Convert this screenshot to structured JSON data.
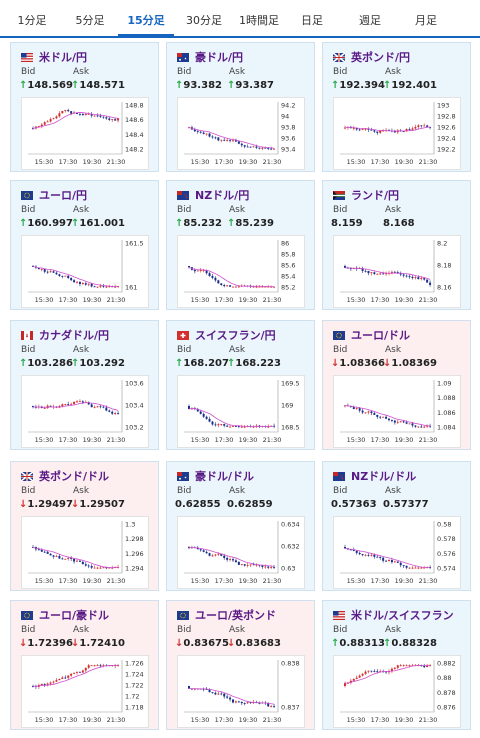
{
  "tabs": [
    {
      "label": "1分足",
      "active": false
    },
    {
      "label": "5分足",
      "active": false
    },
    {
      "label": "15分足",
      "active": true
    },
    {
      "label": "30分足",
      "active": false
    },
    {
      "label": "1時間足",
      "active": false
    },
    {
      "label": "日足",
      "active": false
    },
    {
      "label": "週足",
      "active": false
    },
    {
      "label": "月足",
      "active": false
    }
  ],
  "labels": {
    "bid": "Bid",
    "ask": "Ask"
  },
  "colors": {
    "up": "#2aa84a",
    "down": "#d32f2f",
    "ma": "#d04ed0",
    "bg_blue": "#eaf5fc",
    "bg_pink": "#fdeff0"
  },
  "cards": [
    {
      "title": "米ドル/円",
      "flag": "us",
      "bg": "blue",
      "dir": "up",
      "bid": "148.569",
      "ask": "148.571",
      "yticks": [
        "148.8",
        "148.6",
        "148.4",
        "148.2"
      ],
      "xticks": [
        "15:30",
        "17:30",
        "19:30",
        "21:30"
      ],
      "trend": "mixup"
    },
    {
      "title": "豪ドル/円",
      "flag": "au",
      "bg": "blue",
      "dir": "up",
      "bid": "93.382",
      "ask": "93.387",
      "yticks": [
        "94.2",
        "94",
        "93.8",
        "93.6",
        "93.4"
      ],
      "xticks": [
        "15:30",
        "17:30",
        "19:30",
        "21:30"
      ],
      "trend": "down"
    },
    {
      "title": "英ポンド/円",
      "flag": "uk",
      "bg": "blue",
      "dir": "up",
      "bid": "192.394",
      "ask": "192.401",
      "yticks": [
        "193",
        "192.8",
        "192.6",
        "192.4",
        "192.2"
      ],
      "xticks": [
        "15:30",
        "17:30",
        "19:30",
        "21:30"
      ],
      "trend": "flat"
    },
    {
      "title": "ユーロ/円",
      "flag": "eu",
      "bg": "blue",
      "dir": "up",
      "bid": "160.997",
      "ask": "161.001",
      "yticks": [
        "161.5",
        "161"
      ],
      "xticks": [
        "15:30",
        "17:30",
        "19:30",
        "21:30"
      ],
      "trend": "down"
    },
    {
      "title": "NZドル/円",
      "flag": "nz",
      "bg": "blue",
      "dir": "up",
      "bid": "85.232",
      "ask": "85.239",
      "yticks": [
        "86",
        "85.8",
        "85.6",
        "85.4",
        "85.2"
      ],
      "xticks": [
        "15:30",
        "17:30",
        "19:30",
        "21:30"
      ],
      "trend": "down"
    },
    {
      "title": "ランド/円",
      "flag": "za",
      "bg": "blue",
      "dir": "none",
      "bid": "8.159",
      "ask": "8.168",
      "yticks": [
        "8.2",
        "8.18",
        "8.16"
      ],
      "xticks": [
        "15:30",
        "17:30",
        "19:30",
        "21:30"
      ],
      "trend": "down"
    },
    {
      "title": "カナダドル/円",
      "flag": "ca",
      "bg": "blue",
      "dir": "up",
      "bid": "103.286",
      "ask": "103.292",
      "yticks": [
        "103.6",
        "103.4",
        "103.2"
      ],
      "xticks": [
        "15:30",
        "17:30",
        "19:30",
        "21:30"
      ],
      "trend": "mixdown"
    },
    {
      "title": "スイスフラン/円",
      "flag": "ch",
      "bg": "blue",
      "dir": "up",
      "bid": "168.207",
      "ask": "168.223",
      "yticks": [
        "169.5",
        "169",
        "168.5"
      ],
      "xticks": [
        "15:30",
        "17:30",
        "19:30",
        "21:30"
      ],
      "trend": "down"
    },
    {
      "title": "ユーロ/ドル",
      "flag": "eu",
      "bg": "pink",
      "dir": "down",
      "bid": "1.08366",
      "ask": "1.08369",
      "yticks": [
        "1.09",
        "1.088",
        "1.086",
        "1.084"
      ],
      "xticks": [
        "15:30",
        "17:30",
        "19:30",
        "21:30"
      ],
      "trend": "down"
    },
    {
      "title": "英ポンド/ドル",
      "flag": "uk",
      "bg": "pink",
      "dir": "down",
      "bid": "1.29497",
      "ask": "1.29507",
      "yticks": [
        "1.3",
        "1.298",
        "1.296",
        "1.294"
      ],
      "xticks": [
        "15:30",
        "17:30",
        "19:30",
        "21:30"
      ],
      "trend": "down"
    },
    {
      "title": "豪ドル/ドル",
      "flag": "au",
      "bg": "blue",
      "dir": "none",
      "bid": "0.62855",
      "ask": "0.62859",
      "yticks": [
        "0.634",
        "0.632",
        "0.63"
      ],
      "xticks": [
        "15:30",
        "17:30",
        "19:30",
        "21:30"
      ],
      "trend": "down"
    },
    {
      "title": "NZドル/ドル",
      "flag": "nz",
      "bg": "blue",
      "dir": "none",
      "bid": "0.57363",
      "ask": "0.57377",
      "yticks": [
        "0.58",
        "0.578",
        "0.576",
        "0.574"
      ],
      "xticks": [
        "15:30",
        "17:30",
        "19:30",
        "21:30"
      ],
      "trend": "down"
    },
    {
      "title": "ユーロ/豪ドル",
      "flag": "eu",
      "bg": "pink",
      "dir": "down",
      "bid": "1.72396",
      "ask": "1.72410",
      "yticks": [
        "1.726",
        "1.724",
        "1.722",
        "1.72",
        "1.718"
      ],
      "xticks": [
        "15:30",
        "17:30",
        "19:30",
        "21:30"
      ],
      "trend": "up"
    },
    {
      "title": "ユーロ/英ポンド",
      "flag": "eu",
      "bg": "pink",
      "dir": "down",
      "bid": "0.83675",
      "ask": "0.83683",
      "yticks": [
        "0.838",
        "0.837"
      ],
      "xticks": [
        "15:30",
        "17:30",
        "19:30",
        "21:30"
      ],
      "trend": "down"
    },
    {
      "title": "米ドル/スイスフラン",
      "flag": "us",
      "bg": "blue",
      "dir": "up",
      "bid": "0.88313",
      "ask": "0.88328",
      "yticks": [
        "0.882",
        "0.88",
        "0.878",
        "0.876"
      ],
      "xticks": [
        "15:30",
        "17:30",
        "19:30",
        "21:30"
      ],
      "trend": "up"
    }
  ]
}
